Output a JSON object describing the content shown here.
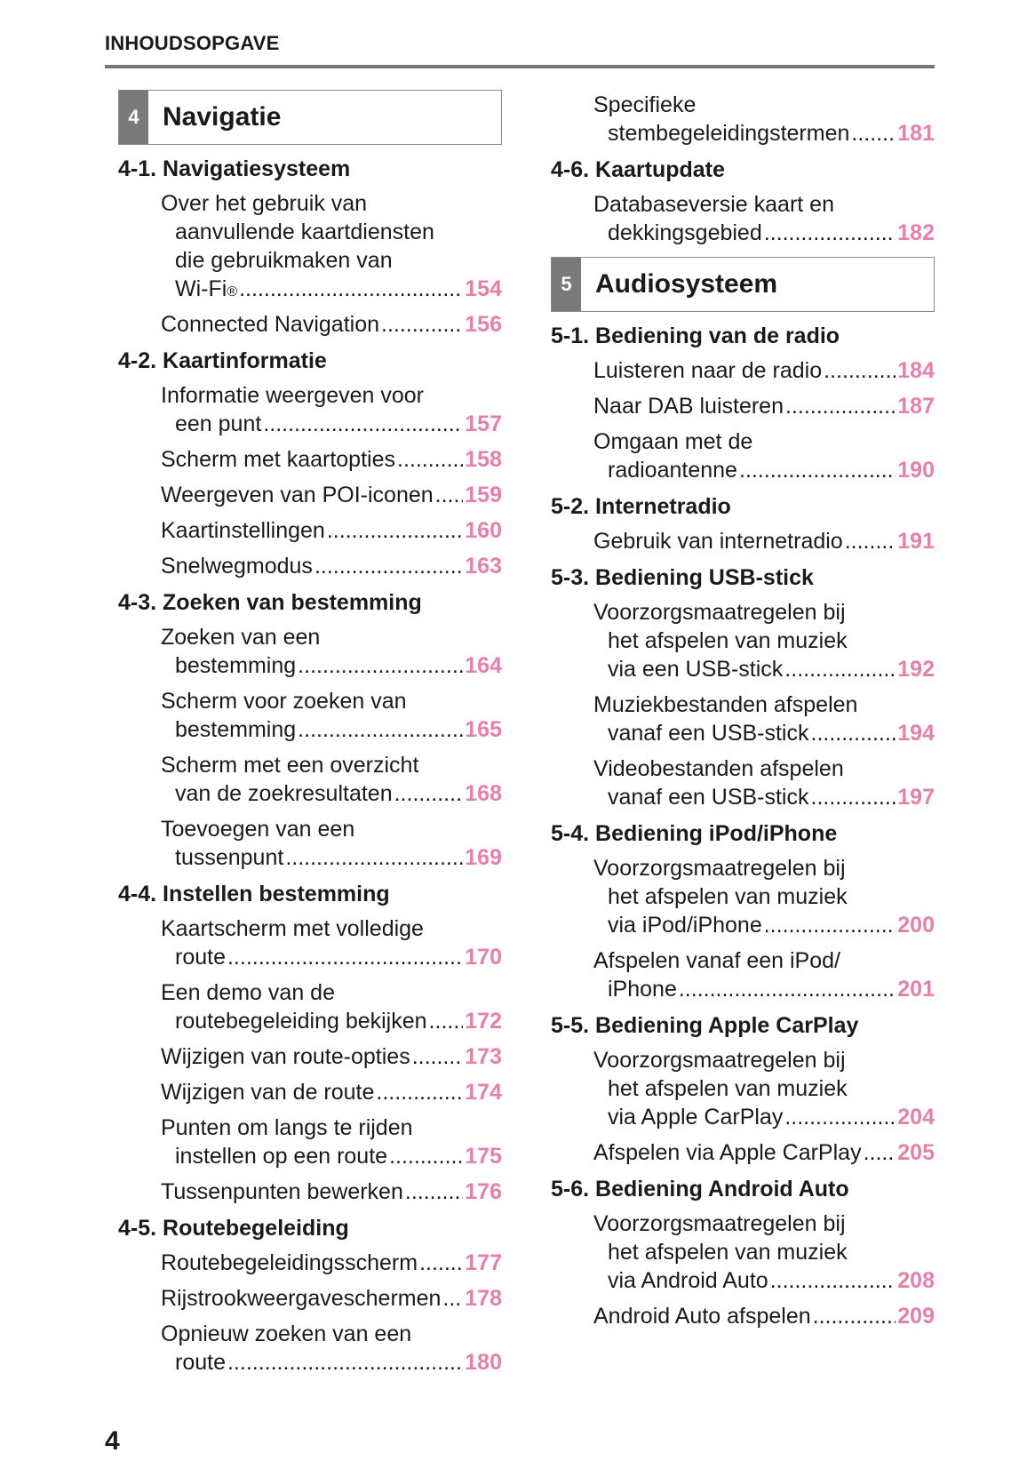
{
  "header": {
    "title": "INHOUDSOPGAVE"
  },
  "page_number": "4",
  "colors": {
    "page_ref": "#e57fab",
    "chapter_tab": "#7a7a7a"
  },
  "columns": [
    [
      {
        "type": "chapter",
        "num": "4",
        "title": "Navigatie"
      },
      {
        "type": "section",
        "title": "4-1. Navigatiesysteem"
      },
      {
        "type": "entry",
        "lines": [
          "Over het gebruik van",
          "aanvullende kaartdiensten",
          "die gebruikmaken van",
          "Wi-Fi"
        ],
        "sup": "®",
        "page": "154"
      },
      {
        "type": "entry",
        "lines": [
          "Connected Navigation"
        ],
        "page": "156"
      },
      {
        "type": "section",
        "title": "4-2. Kaartinformatie"
      },
      {
        "type": "entry",
        "lines": [
          "Informatie weergeven voor",
          "een punt"
        ],
        "page": "157"
      },
      {
        "type": "entry",
        "lines": [
          "Scherm met kaartopties"
        ],
        "page": "158"
      },
      {
        "type": "entry",
        "lines": [
          "Weergeven van POI-iconen"
        ],
        "page": "159"
      },
      {
        "type": "entry",
        "lines": [
          "Kaartinstellingen"
        ],
        "page": "160"
      },
      {
        "type": "entry",
        "lines": [
          "Snelwegmodus"
        ],
        "page": "163"
      },
      {
        "type": "section",
        "title": "4-3. Zoeken van bestemming"
      },
      {
        "type": "entry",
        "lines": [
          "Zoeken van een",
          "bestemming"
        ],
        "page": "164"
      },
      {
        "type": "entry",
        "lines": [
          "Scherm voor zoeken van",
          "bestemming"
        ],
        "page": "165"
      },
      {
        "type": "entry",
        "lines": [
          "Scherm met een overzicht",
          "van de zoekresultaten"
        ],
        "page": "168"
      },
      {
        "type": "entry",
        "lines": [
          "Toevoegen van een",
          "tussenpunt"
        ],
        "page": "169"
      },
      {
        "type": "section",
        "title": "4-4. Instellen bestemming"
      },
      {
        "type": "entry",
        "lines": [
          "Kaartscherm met volledige",
          "route"
        ],
        "page": "170"
      },
      {
        "type": "entry",
        "lines": [
          "Een demo van de",
          "routebegeleiding bekijken"
        ],
        "page": "172"
      },
      {
        "type": "entry",
        "lines": [
          "Wijzigen van route-opties"
        ],
        "page": "173"
      },
      {
        "type": "entry",
        "lines": [
          "Wijzigen van de route"
        ],
        "page": "174"
      },
      {
        "type": "entry",
        "lines": [
          "Punten om langs te rijden",
          "instellen op een route"
        ],
        "page": "175"
      },
      {
        "type": "entry",
        "lines": [
          "Tussenpunten bewerken"
        ],
        "page": "176"
      },
      {
        "type": "section",
        "title": "4-5. Routebegeleiding"
      },
      {
        "type": "entry",
        "lines": [
          "Routebegeleidingsscherm"
        ],
        "page": "177"
      },
      {
        "type": "entry",
        "lines": [
          "Rijstrookweergaveschermen"
        ],
        "page": "178"
      },
      {
        "type": "entry",
        "lines": [
          "Opnieuw zoeken van een",
          "route"
        ],
        "page": "180"
      }
    ],
    [
      {
        "type": "entry",
        "lines": [
          "Specifieke",
          "stembegeleidingstermen"
        ],
        "page": "181"
      },
      {
        "type": "section",
        "title": "4-6. Kaartupdate"
      },
      {
        "type": "entry",
        "lines": [
          "Databaseversie kaart en",
          "dekkingsgebied"
        ],
        "page": "182"
      },
      {
        "type": "chapter",
        "num": "5",
        "title": "Audiosysteem"
      },
      {
        "type": "section",
        "title": "5-1. Bediening van de radio"
      },
      {
        "type": "entry",
        "lines": [
          "Luisteren naar de radio"
        ],
        "page": "184"
      },
      {
        "type": "entry",
        "lines": [
          "Naar DAB luisteren"
        ],
        "page": "187"
      },
      {
        "type": "entry",
        "lines": [
          "Omgaan met de",
          "radioantenne"
        ],
        "page": "190"
      },
      {
        "type": "section",
        "title": "5-2. Internetradio"
      },
      {
        "type": "entry",
        "lines": [
          "Gebruik van internetradio"
        ],
        "page": "191"
      },
      {
        "type": "section",
        "title": "5-3. Bediening USB-stick"
      },
      {
        "type": "entry",
        "lines": [
          "Voorzorgsmaatregelen bij",
          "het afspelen van muziek",
          "via een USB-stick"
        ],
        "page": "192"
      },
      {
        "type": "entry",
        "lines": [
          "Muziekbestanden afspelen",
          "vanaf een USB-stick"
        ],
        "page": "194"
      },
      {
        "type": "entry",
        "lines": [
          "Videobestanden afspelen",
          "vanaf een USB-stick"
        ],
        "page": "197"
      },
      {
        "type": "section",
        "title": "5-4. Bediening iPod/iPhone"
      },
      {
        "type": "entry",
        "lines": [
          "Voorzorgsmaatregelen bij",
          "het afspelen van muziek",
          "via iPod/iPhone"
        ],
        "page": "200"
      },
      {
        "type": "entry",
        "lines": [
          "Afspelen vanaf een iPod/",
          "iPhone"
        ],
        "page": "201"
      },
      {
        "type": "section",
        "title": "5-5. Bediening Apple CarPlay"
      },
      {
        "type": "entry",
        "lines": [
          "Voorzorgsmaatregelen bij",
          "het afspelen van muziek",
          "via Apple CarPlay"
        ],
        "page": "204"
      },
      {
        "type": "entry",
        "lines": [
          "Afspelen via Apple CarPlay"
        ],
        "page": "205"
      },
      {
        "type": "section",
        "title": "5-6. Bediening Android Auto"
      },
      {
        "type": "entry",
        "lines": [
          "Voorzorgsmaatregelen bij",
          "het afspelen van muziek",
          "via Android Auto"
        ],
        "page": "208"
      },
      {
        "type": "entry",
        "lines": [
          "Android Auto afspelen"
        ],
        "page": "209"
      }
    ]
  ]
}
